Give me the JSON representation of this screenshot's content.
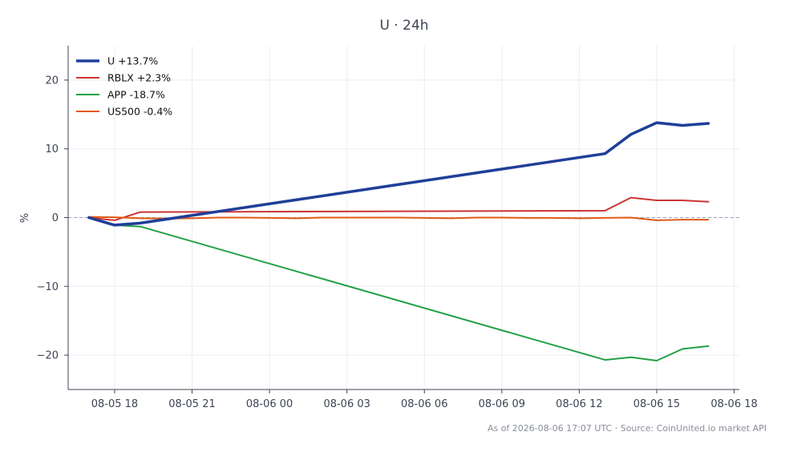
{
  "chart_data": {
    "type": "line",
    "title": "U · 24h",
    "xlabel": "",
    "ylabel": "%",
    "ylim": [
      -25,
      25
    ],
    "yticks": [
      -20,
      -10,
      0,
      10,
      20
    ],
    "ytick_labels": [
      "−20",
      "−10",
      "0",
      "10",
      "20"
    ],
    "xlim": [
      "2026-08-05 16:12",
      "2026-08-06 18:12"
    ],
    "xticks": [
      "2026-08-05 18:00",
      "2026-08-05 21:00",
      "2026-08-06 00:00",
      "2026-08-06 03:00",
      "2026-08-06 06:00",
      "2026-08-06 09:00",
      "2026-08-06 12:00",
      "2026-08-06 15:00",
      "2026-08-06 18:00"
    ],
    "xtick_labels": [
      "08-05 18",
      "08-05 21",
      "08-06 00",
      "08-06 03",
      "08-06 06",
      "08-06 09",
      "08-06 12",
      "08-06 15",
      "08-06 18"
    ],
    "grid": true,
    "zero_line": true,
    "legend_position": "top-left",
    "series": [
      {
        "name": "U +13.7%",
        "color": "#1f3f99",
        "x": [
          "2026-08-05 17:00",
          "2026-08-05 18:00",
          "2026-08-05 19:00",
          "2026-08-06 13:00",
          "2026-08-06 14:00",
          "2026-08-06 15:00",
          "2026-08-06 16:00",
          "2026-08-06 17:00"
        ],
        "values": [
          0,
          -1.1,
          -0.8,
          9.3,
          12.1,
          13.8,
          13.4,
          13.7
        ]
      },
      {
        "name": "RBLX +2.3%",
        "color": "#cc3333",
        "x": [
          "2026-08-05 17:00",
          "2026-08-05 18:00",
          "2026-08-05 19:00",
          "2026-08-06 13:00",
          "2026-08-06 14:00",
          "2026-08-06 15:00",
          "2026-08-06 16:00",
          "2026-08-06 17:00"
        ],
        "values": [
          0,
          -0.4,
          0.8,
          1.0,
          2.9,
          2.5,
          2.5,
          2.3
        ]
      },
      {
        "name": "APP -18.7%",
        "color": "#22a045",
        "x": [
          "2026-08-05 17:00",
          "2026-08-05 18:00",
          "2026-08-05 19:00",
          "2026-08-06 13:00",
          "2026-08-06 14:00",
          "2026-08-06 15:00",
          "2026-08-06 16:00",
          "2026-08-06 17:00"
        ],
        "values": [
          0,
          -1.1,
          -1.3,
          -20.7,
          -20.3,
          -20.8,
          -19.1,
          -18.7
        ]
      },
      {
        "name": "US500 -0.4%",
        "color": "#e05a14",
        "x": [
          "2026-08-05 17:00",
          "2026-08-05 18:00",
          "2026-08-05 19:00",
          "2026-08-05 20:00",
          "2026-08-05 21:00",
          "2026-08-05 22:00",
          "2026-08-05 23:00",
          "2026-08-06 00:00",
          "2026-08-06 01:00",
          "2026-08-06 02:00",
          "2026-08-06 03:00",
          "2026-08-06 04:00",
          "2026-08-06 05:00",
          "2026-08-06 06:00",
          "2026-08-06 07:00",
          "2026-08-06 08:00",
          "2026-08-06 09:00",
          "2026-08-06 10:00",
          "2026-08-06 11:00",
          "2026-08-06 12:00",
          "2026-08-06 13:00",
          "2026-08-06 14:00",
          "2026-08-06 15:00",
          "2026-08-06 16:00",
          "2026-08-06 17:00"
        ],
        "values": [
          0.1,
          0.05,
          -0.1,
          -0.15,
          -0.1,
          0.0,
          0.0,
          -0.05,
          -0.1,
          0.0,
          0.0,
          0.0,
          0.0,
          -0.05,
          -0.1,
          0.0,
          0.0,
          -0.05,
          -0.05,
          -0.1,
          -0.05,
          0.0,
          -0.4,
          -0.3,
          -0.3
        ]
      }
    ]
  },
  "footer": "As of 2026-08-06 17:07 UTC · Source: CoinUnited.io market API"
}
